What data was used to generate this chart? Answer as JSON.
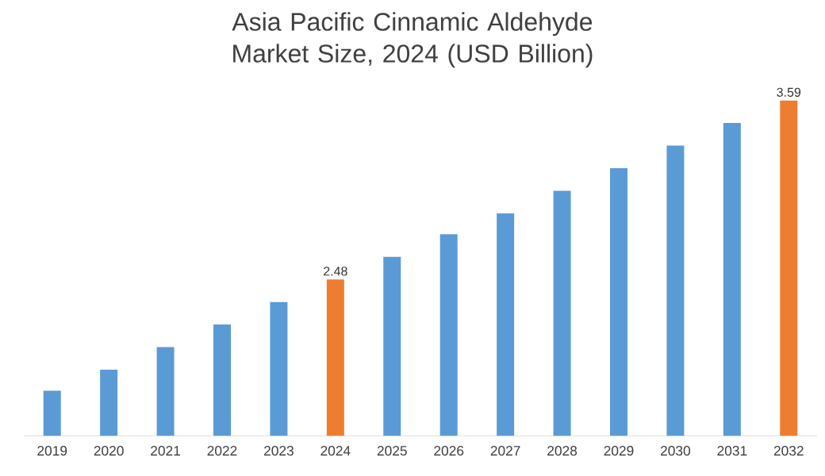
{
  "chart_data": {
    "type": "bar",
    "title": "Asia Pacific Cinnamic Aldehyde Market Size, 2024 (USD Billion)",
    "categories": [
      "2019",
      "2020",
      "2021",
      "2022",
      "2023",
      "2024",
      "2025",
      "2026",
      "2027",
      "2028",
      "2029",
      "2030",
      "2031",
      "2032"
    ],
    "values": [
      1.79,
      1.92,
      2.06,
      2.2,
      2.34,
      2.48,
      2.62,
      2.76,
      2.89,
      3.03,
      3.17,
      3.31,
      3.45,
      3.59
    ],
    "value_labels": [
      null,
      null,
      null,
      null,
      null,
      "2.48",
      null,
      null,
      null,
      null,
      null,
      null,
      null,
      "3.59"
    ],
    "colors": [
      "#5b9bd5",
      "#5b9bd5",
      "#5b9bd5",
      "#5b9bd5",
      "#5b9bd5",
      "#ed7d31",
      "#5b9bd5",
      "#5b9bd5",
      "#5b9bd5",
      "#5b9bd5",
      "#5b9bd5",
      "#5b9bd5",
      "#5b9bd5",
      "#ed7d31"
    ],
    "ylim": [
      1.51,
      3.59
    ]
  }
}
